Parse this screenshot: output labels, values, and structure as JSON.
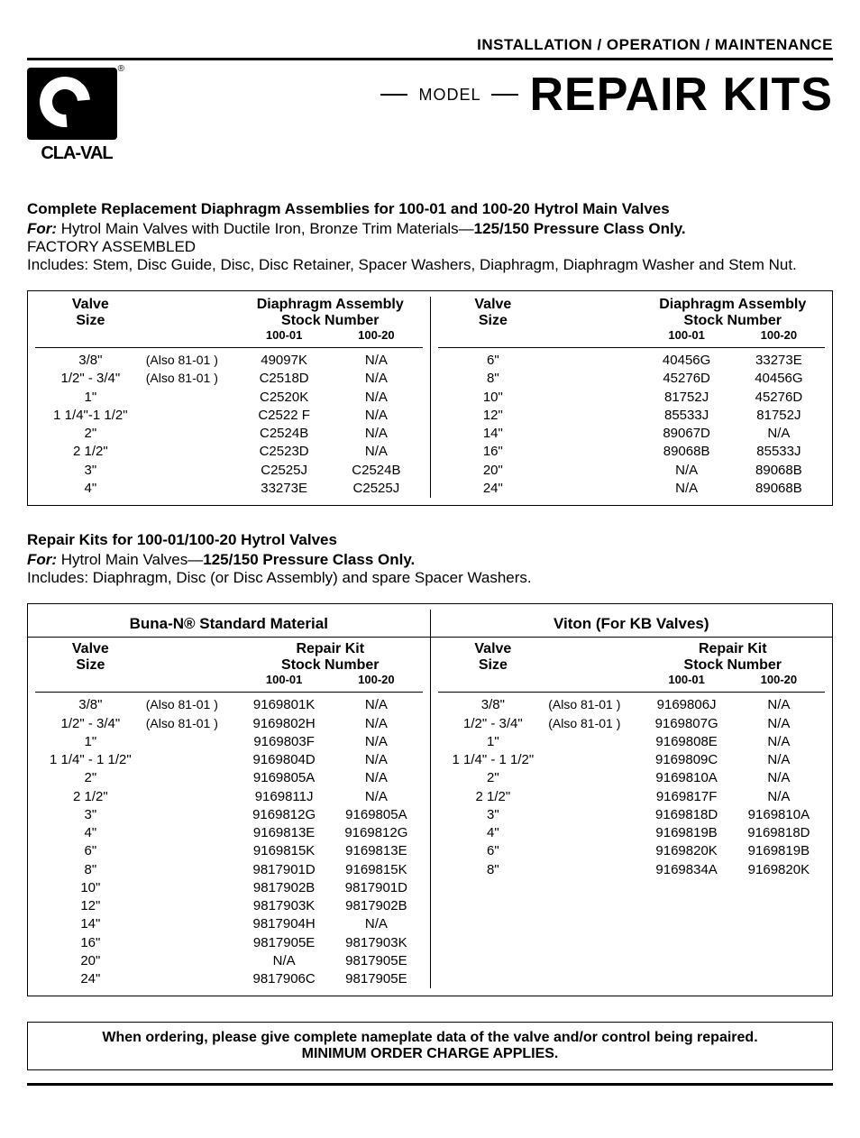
{
  "header": {
    "bar": "INSTALLATION / OPERATION / MAINTENANCE",
    "logo_text": "CLA-VAL",
    "model_label": "MODEL",
    "title": "REPAIR KITS"
  },
  "section1": {
    "heading": "Complete Replacement Diaphragm Assemblies for 100-01 and 100-20 Hytrol Main Valves",
    "for_prefix": "For:",
    "for_text": " Hytrol Main Valves with Ductile Iron, Bronze Trim Materials—",
    "for_bold": "125/150 Pressure Class Only.",
    "factory": "FACTORY ASSEMBLED",
    "includes": "Includes: Stem, Disc Guide, Disc, Disc Retainer, Spacer Washers, Diaphragm, Diaphragm Washer and Stem Nut.",
    "col_valve": "Valve",
    "col_size": "Size",
    "col_assembly": "Diaphragm Assembly",
    "col_stock": "Stock Number",
    "sub_10001": "100-01",
    "sub_10020": "100-20",
    "left_rows": [
      {
        "size": "3/8\"",
        "note": "(Also 81-01 )",
        "a": "49097K",
        "b": "N/A"
      },
      {
        "size": "1/2\" - 3/4\"",
        "note": "(Also 81-01 )",
        "a": "C2518D",
        "b": "N/A"
      },
      {
        "size": "1\"",
        "note": "",
        "a": "C2520K",
        "b": "N/A"
      },
      {
        "size": "1 1/4\"-1 1/2\"",
        "note": "",
        "a": "C2522 F",
        "b": "N/A"
      },
      {
        "size": "2\"",
        "note": "",
        "a": "C2524B",
        "b": "N/A"
      },
      {
        "size": "2 1/2\"",
        "note": "",
        "a": "C2523D",
        "b": "N/A"
      },
      {
        "size": "3\"",
        "note": "",
        "a": "C2525J",
        "b": "C2524B"
      },
      {
        "size": "4\"",
        "note": "",
        "a": "33273E",
        "b": "C2525J"
      }
    ],
    "right_rows": [
      {
        "size": "6\"",
        "note": "",
        "a": "40456G",
        "b": "33273E"
      },
      {
        "size": "8\"",
        "note": "",
        "a": "45276D",
        "b": "40456G"
      },
      {
        "size": "10\"",
        "note": "",
        "a": "81752J",
        "b": "45276D"
      },
      {
        "size": "12\"",
        "note": "",
        "a": "85533J",
        "b": "81752J"
      },
      {
        "size": "14\"",
        "note": "",
        "a": "89067D",
        "b": "N/A"
      },
      {
        "size": "16\"",
        "note": "",
        "a": "89068B",
        "b": "85533J"
      },
      {
        "size": "20\"",
        "note": "",
        "a": "N/A",
        "b": "89068B"
      },
      {
        "size": "24\"",
        "note": "",
        "a": "N/A",
        "b": "89068B"
      }
    ]
  },
  "section2": {
    "heading": "Repair Kits for 100-01/100-20 Hytrol Valves",
    "for_prefix": "For:",
    "for_text": " Hytrol Main Valves—",
    "for_bold": "125/150 Pressure Class Only.",
    "includes": "Includes: Diaphragm, Disc (or Disc Assembly) and spare Spacer Washers.",
    "material_left": "Buna-N® Standard Material",
    "material_right": "Viton (For KB Valves)",
    "col_valve": "Valve",
    "col_size": "Size",
    "col_repair": "Repair Kit",
    "col_stock": "Stock Number",
    "sub_10001": "100-01",
    "sub_10020": "100-20",
    "left_rows": [
      {
        "size": "3/8\"",
        "note": "(Also 81-01 )",
        "a": "9169801K",
        "b": "N/A"
      },
      {
        "size": "1/2\" - 3/4\"",
        "note": "(Also 81-01 )",
        "a": "9169802H",
        "b": "N/A"
      },
      {
        "size": "1\"",
        "note": "",
        "a": "9169803F",
        "b": "N/A"
      },
      {
        "size": "1 1/4\" - 1 1/2\"",
        "note": "",
        "a": "9169804D",
        "b": "N/A"
      },
      {
        "size": "2\"",
        "note": "",
        "a": "9169805A",
        "b": "N/A"
      },
      {
        "size": "2 1/2\"",
        "note": "",
        "a": "9169811J",
        "b": "N/A"
      },
      {
        "size": "3\"",
        "note": "",
        "a": "9169812G",
        "b": "9169805A"
      },
      {
        "size": "4\"",
        "note": "",
        "a": "9169813E",
        "b": "9169812G"
      },
      {
        "size": "6\"",
        "note": "",
        "a": "9169815K",
        "b": "9169813E"
      },
      {
        "size": "8\"",
        "note": "",
        "a": "9817901D",
        "b": "9169815K"
      },
      {
        "size": "10\"",
        "note": "",
        "a": "9817902B",
        "b": "9817901D"
      },
      {
        "size": "12\"",
        "note": "",
        "a": "9817903K",
        "b": "9817902B"
      },
      {
        "size": "14\"",
        "note": "",
        "a": "9817904H",
        "b": "N/A"
      },
      {
        "size": "16\"",
        "note": "",
        "a": "9817905E",
        "b": "9817903K"
      },
      {
        "size": "20\"",
        "note": "",
        "a": "N/A",
        "b": "9817905E"
      },
      {
        "size": "24\"",
        "note": "",
        "a": "9817906C",
        "b": "9817905E"
      }
    ],
    "right_rows": [
      {
        "size": "3/8\"",
        "note": "(Also 81-01 )",
        "a": "9169806J",
        "b": "N/A"
      },
      {
        "size": "1/2\" - 3/4\"",
        "note": "(Also 81-01 )",
        "a": "9169807G",
        "b": "N/A"
      },
      {
        "size": "1\"",
        "note": "",
        "a": "9169808E",
        "b": "N/A"
      },
      {
        "size": "1 1/4\" - 1 1/2\"",
        "note": "",
        "a": "9169809C",
        "b": "N/A"
      },
      {
        "size": "2\"",
        "note": "",
        "a": "9169810A",
        "b": "N/A"
      },
      {
        "size": "2 1/2\"",
        "note": "",
        "a": "9169817F",
        "b": "N/A"
      },
      {
        "size": "3\"",
        "note": "",
        "a": "9169818D",
        "b": "9169810A"
      },
      {
        "size": "4\"",
        "note": "",
        "a": "9169819B",
        "b": "9169818D"
      },
      {
        "size": "6\"",
        "note": "",
        "a": "9169820K",
        "b": "9169819B"
      },
      {
        "size": "8\"",
        "note": "",
        "a": "9169834A",
        "b": "9169820K"
      }
    ]
  },
  "footer": {
    "line1": "When ordering, please give complete nameplate data of the valve and/or control being repaired.",
    "line2": "MINIMUM ORDER CHARGE APPLIES."
  }
}
